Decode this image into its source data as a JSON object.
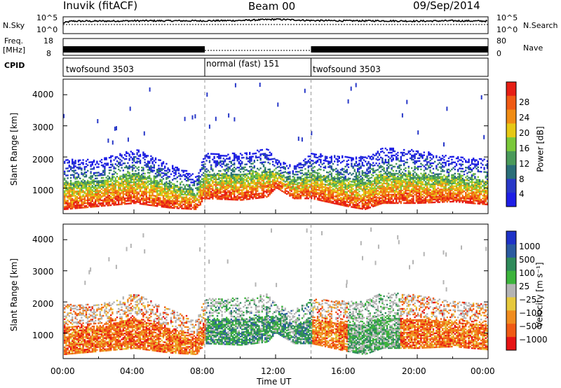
{
  "header": {
    "station": "Inuvik (fitACF)",
    "beam": "Beam 00",
    "date": "09/Sep/2014"
  },
  "left_labels": {
    "nsky": "N.Sky",
    "nsky_ticks": [
      "10^5",
      "10^0"
    ],
    "freq": "Freq.",
    "freq_unit": "[MHz]",
    "freq_ticks": [
      "18",
      "8"
    ],
    "cpid": "CPID"
  },
  "right_labels": {
    "nsearch": "N.Search",
    "nsearch_ticks": [
      "10^5",
      "10^0"
    ],
    "nave": "Nave",
    "nave_ticks": [
      "80",
      "0"
    ]
  },
  "cpid_segments": [
    {
      "label": "twofsound 3503",
      "start_hour": 0,
      "end_hour": 8
    },
    {
      "label": "normal (fast) 151",
      "start_hour": 8,
      "end_hour": 14
    },
    {
      "label": "twofsound 3503",
      "start_hour": 14,
      "end_hour": 24
    }
  ],
  "colors": {
    "power_scale": [
      "#1e1ee6",
      "#2838c8",
      "#2a6e78",
      "#4a9a5a",
      "#7ac83a",
      "#e6c814",
      "#f08c14",
      "#f05a14",
      "#e61e14"
    ],
    "velocity_scale": [
      "#1e32c8",
      "#2a5aa0",
      "#2e8a5a",
      "#3cb43c",
      "#b4b4b4",
      "#e6c83c",
      "#f08c1e",
      "#f05a14",
      "#e61414"
    ]
  },
  "chart_data": [
    {
      "type": "line",
      "panel": "N.Sky / N.Search",
      "x_unit": "hour UT",
      "ylim_labels": [
        "10^0",
        "10^5"
      ],
      "x": [
        0,
        0.5,
        2,
        4,
        6,
        8,
        10,
        12,
        14,
        16,
        18,
        20,
        22,
        24
      ],
      "values_log10": [
        3.0,
        3.6,
        3.6,
        3.7,
        3.7,
        3.7,
        3.8,
        4.2,
        3.8,
        3.7,
        3.7,
        3.6,
        3.7,
        3.6
      ]
    },
    {
      "type": "line",
      "panel": "Freq. / Nave",
      "x_unit": "hour UT",
      "freq_mhz": [
        {
          "start_hour": 0,
          "end_hour": 8,
          "value": 10
        },
        {
          "start_hour": 8,
          "end_hour": 14,
          "value": 10
        },
        {
          "start_hour": 14,
          "end_hour": 24,
          "value": 10
        }
      ],
      "ylim": [
        8,
        18
      ]
    },
    {
      "type": "heatmap",
      "panel": "Power",
      "xlabel": "",
      "ylabel": "Slant Range [km]",
      "ylim": [
        180,
        4500
      ],
      "ytick_labels": [
        "1000",
        "2000",
        "3000",
        "4000"
      ],
      "colorbar_label": "Power [dB]",
      "colorbar_ticks": [
        "4",
        "8",
        "12",
        "16",
        "20",
        "24",
        "28"
      ],
      "colorbar_range": [
        0,
        32
      ],
      "backscatter_band": {
        "x_hours": [
          0,
          2,
          4,
          6,
          7.5,
          8,
          10,
          11.5,
          12,
          13,
          14,
          16,
          17,
          18,
          20,
          22,
          24
        ],
        "low_km": [
          300,
          400,
          500,
          350,
          300,
          650,
          600,
          700,
          1000,
          650,
          650,
          400,
          300,
          500,
          500,
          550,
          450
        ],
        "high_km": [
          1900,
          1900,
          2250,
          1750,
          1400,
          2100,
          2100,
          2250,
          1900,
          1700,
          2100,
          2000,
          2000,
          2300,
          2200,
          2000,
          1900
        ]
      }
    },
    {
      "type": "heatmap",
      "panel": "Velocity",
      "xlabel": "Time UT",
      "ylabel": "Slant Range [km]",
      "ylim": [
        180,
        4500
      ],
      "ytick_labels": [
        "1000",
        "2000",
        "3000",
        "4000"
      ],
      "xtick_labels": [
        "00:00",
        "04:00",
        "08:00",
        "12:00",
        "16:00",
        "20:00",
        "00:00"
      ],
      "colorbar_label": "Velocity [m s⁻¹]",
      "colorbar_ticks": [
        "1000",
        "500",
        "100",
        "25",
        "−25",
        "−100",
        "−500",
        "−1000"
      ]
    }
  ],
  "axes": {
    "xlabel": "Time UT",
    "ylabel_power": "Slant Range [km]",
    "ylabel_velocity": "Slant Range [km]",
    "power_cb_label": "Power [dB]",
    "vel_cb_label": "Velocity [m s⁻¹]"
  }
}
